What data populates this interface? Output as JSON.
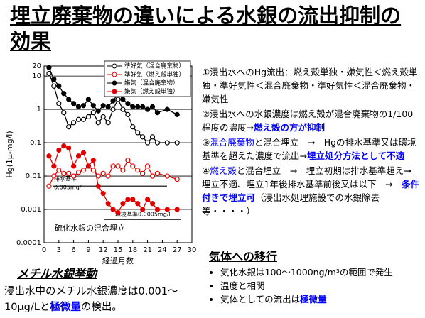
{
  "title": "埋立廃棄物の違いによる水銀の流出抑制の効果",
  "chart_data": {
    "type": "line",
    "yscale": "log",
    "grid": true,
    "legend": "top-right",
    "ylabel": "Hg(1μ-mg/l)",
    "xlabel": "経過月数",
    "annotation": "硫化水銀の混合埋立",
    "xlim": [
      0,
      30
    ],
    "xticks": [
      0,
      3,
      6,
      9,
      12,
      15,
      18,
      21,
      24,
      27,
      30
    ],
    "ylim": [
      0.0001,
      20
    ],
    "yticks": [
      0.0001,
      0.001,
      0.01,
      0.1,
      1,
      10,
      20
    ],
    "reference_lines": [
      {
        "value": 0.005,
        "label": [
          "排水基準",
          "0.005mg/l"
        ]
      },
      {
        "value": 0.0005,
        "label": [
          "環境基準0.0005mg/l"
        ]
      }
    ],
    "x": [
      1,
      2,
      3,
      4,
      5,
      6,
      7,
      8,
      9,
      10,
      11,
      12,
      13,
      14,
      15,
      16,
      17,
      18,
      19,
      20,
      21,
      22,
      23,
      25,
      27
    ],
    "series": [
      {
        "name": "準好気（混合廃棄物）",
        "color": "#000000",
        "filled": false,
        "values": [
          12,
          5,
          1.5,
          0.8,
          0.3,
          0.4,
          0.5,
          0.5,
          0.6,
          0.8,
          0.4,
          0.6,
          0.4,
          1,
          2,
          1,
          0.7,
          0.3,
          0.2,
          0.15,
          0.1,
          0.15,
          0.1,
          0.1,
          0.1
        ]
      },
      {
        "name": "準好気（燃え殻単独）",
        "color": "#e00000",
        "filled": false,
        "values": [
          0.005,
          0.01,
          0.015,
          0.012,
          0.012,
          0.01,
          0.013,
          0.015,
          0.02,
          0.015,
          0.01,
          0.012,
          0.01,
          0.02,
          0.02,
          0.015,
          0.03,
          0.02,
          0.015,
          0.012,
          0.02,
          0.01,
          0.012,
          0.01,
          0.008
        ]
      },
      {
        "name": "嫌気（混合廃棄物）",
        "color": "#000000",
        "filled": true,
        "values": [
          18,
          8,
          5,
          3,
          2,
          1.5,
          1.2,
          1.3,
          2,
          1.3,
          0.9,
          1.3,
          1.2,
          1.8,
          3,
          2,
          1.5,
          1.2,
          1.2,
          1.2,
          1,
          1.2,
          0.8,
          1,
          0.7
        ]
      },
      {
        "name": "嫌気（燃え殻単独）",
        "color": "#e00000",
        "filled": true,
        "values": [
          0.04,
          0.02,
          0.06,
          0.08,
          0.07,
          0.02,
          0.04,
          0.05,
          0.02,
          0.03,
          0.005,
          0.003,
          0.0015,
          0.001,
          0.0008,
          0.0015,
          0.002,
          0.002,
          0.0015,
          0.001,
          0.002,
          0.0015,
          0.001,
          0.001,
          0.001
        ]
      }
    ]
  },
  "findings": [
    {
      "segments": [
        {
          "text": "①浸出水へのHg流出：燃え殻単独・嫌気性＜燃え殻単独・準好気性＜混合廃棄物・準好気性＜混合廃棄物・嫌気性"
        }
      ]
    },
    {
      "segments": [
        {
          "text": "②浸出水への水銀濃度は燃え殻が混合廃棄物の1/100程度の濃度→"
        },
        {
          "text": "燃え殻の方が抑制",
          "color": "#0000ff",
          "bold": true
        }
      ]
    },
    {
      "segments": [
        {
          "text": "③"
        },
        {
          "text": "混合廃棄物",
          "color": "#0000ff"
        },
        {
          "text": "と混合埋立　→　Hgの排水基準又は環境基準を超えた濃度で流出→"
        },
        {
          "text": "埋立処分方法として不適",
          "color": "#0000ff",
          "bold": true
        }
      ]
    },
    {
      "segments": [
        {
          "text": "④"
        },
        {
          "text": "燃え殻",
          "color": "#0000ff"
        },
        {
          "text": "と混合埋立　→　埋立初期は排水基準超え→埋立不適、埋立1年後排水基準前後又は以下　→　"
        },
        {
          "text": "条件付きで埋立可",
          "color": "#0000ff",
          "bold": true
        },
        {
          "text": "（浸出水処理施設での水銀除去等・・・・）"
        }
      ]
    }
  ],
  "gas": {
    "heading": "気体への移行",
    "bullets": [
      {
        "segments": [
          {
            "text": "気化水銀は100～1000ng/m³の範囲で発生"
          }
        ]
      },
      {
        "segments": [
          {
            "text": "温度と相関"
          }
        ]
      },
      {
        "segments": [
          {
            "text": "気体としての流出は"
          },
          {
            "text": "極微量",
            "color": "#0000ff",
            "bold": true
          }
        ]
      }
    ]
  },
  "methyl": {
    "heading": "メチル水銀挙動",
    "segments": [
      {
        "text": "浸出水中のメチル水銀濃度は0.001～10μg/Lと"
      },
      {
        "text": "極微量",
        "color": "#0000ff",
        "bold": true
      },
      {
        "text": "の検出。"
      }
    ]
  }
}
